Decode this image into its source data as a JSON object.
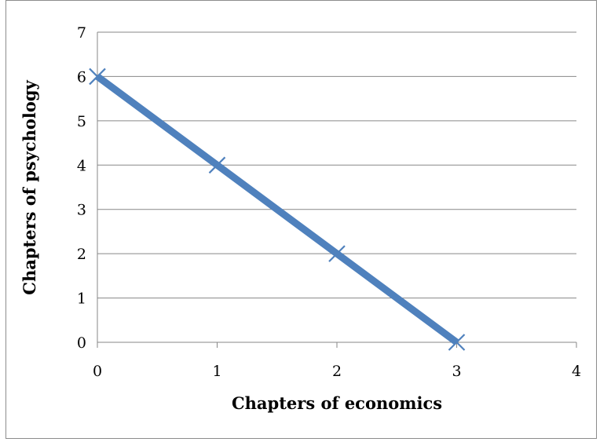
{
  "chart_data": {
    "type": "line",
    "title": "",
    "xlabel": "Chapters of economics",
    "ylabel": "Chapters of psychology",
    "xlim": [
      0,
      4
    ],
    "ylim": [
      0,
      7
    ],
    "x_ticks": [
      "0",
      "1",
      "2",
      "3",
      "4"
    ],
    "y_ticks": [
      "0",
      "1",
      "2",
      "3",
      "4",
      "5",
      "6",
      "7"
    ],
    "grid": "horizontal",
    "legend": "none",
    "series": [
      {
        "x": [
          0,
          1,
          2,
          3
        ],
        "values": [
          6,
          4,
          2,
          0
        ],
        "marker": "x",
        "color": "#4f81bd"
      }
    ]
  },
  "colors": {
    "line": "#4f81bd",
    "grid": "#878787",
    "axis": "#878787"
  }
}
